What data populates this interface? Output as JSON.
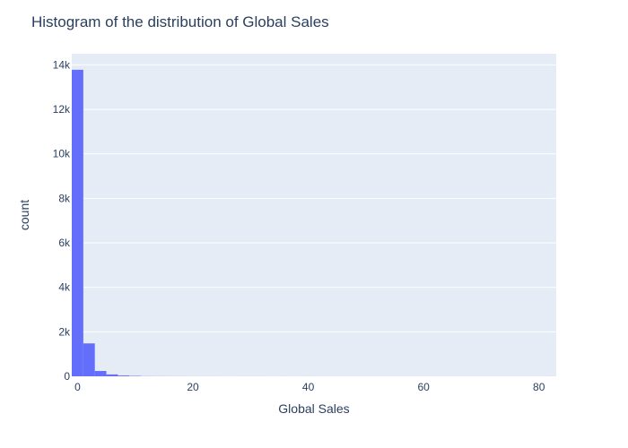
{
  "chart_data": {
    "type": "bar",
    "title": "Histogram of the distribution of Global Sales",
    "xlabel": "Global Sales",
    "ylabel": "count",
    "bin_width": 2,
    "bins": [
      {
        "x0": -1,
        "x1": 1,
        "count": 13780
      },
      {
        "x0": 1,
        "x1": 3,
        "count": 1480
      },
      {
        "x0": 3,
        "x1": 5,
        "count": 240
      },
      {
        "x0": 5,
        "x1": 7,
        "count": 85
      },
      {
        "x0": 7,
        "x1": 9,
        "count": 35
      },
      {
        "x0": 9,
        "x1": 11,
        "count": 18
      },
      {
        "x0": 11,
        "x1": 13,
        "count": 6
      },
      {
        "x0": 13,
        "x1": 15,
        "count": 4
      },
      {
        "x0": 15,
        "x1": 17,
        "count": 3
      },
      {
        "x0": 17,
        "x1": 19,
        "count": 2
      },
      {
        "x0": 19,
        "x1": 21,
        "count": 1
      },
      {
        "x0": 21,
        "x1": 23,
        "count": 1
      },
      {
        "x0": 23,
        "x1": 25,
        "count": 1
      },
      {
        "x0": 27,
        "x1": 29,
        "count": 1
      },
      {
        "x0": 29,
        "x1": 31,
        "count": 1
      },
      {
        "x0": 31,
        "x1": 33,
        "count": 1
      },
      {
        "x0": 35,
        "x1": 37,
        "count": 1
      },
      {
        "x0": 39,
        "x1": 41,
        "count": 1
      },
      {
        "x0": 81,
        "x1": 83,
        "count": 1
      }
    ],
    "xlim": [
      -1,
      83
    ],
    "ylim": [
      0,
      14500
    ],
    "x_ticks": [
      {
        "value": 0,
        "label": "0"
      },
      {
        "value": 20,
        "label": "20"
      },
      {
        "value": 40,
        "label": "40"
      },
      {
        "value": 60,
        "label": "60"
      },
      {
        "value": 80,
        "label": "80"
      }
    ],
    "y_ticks": [
      {
        "value": 0,
        "label": "0"
      },
      {
        "value": 2000,
        "label": "2k"
      },
      {
        "value": 4000,
        "label": "4k"
      },
      {
        "value": 6000,
        "label": "6k"
      },
      {
        "value": 8000,
        "label": "8k"
      },
      {
        "value": 10000,
        "label": "10k"
      },
      {
        "value": 12000,
        "label": "12k"
      },
      {
        "value": 14000,
        "label": "14k"
      }
    ],
    "grid": true,
    "colors": {
      "bar": "#636efa",
      "plot_bg": "#e5ecf6",
      "grid": "#ffffff",
      "text": "#2a3f5f"
    }
  }
}
